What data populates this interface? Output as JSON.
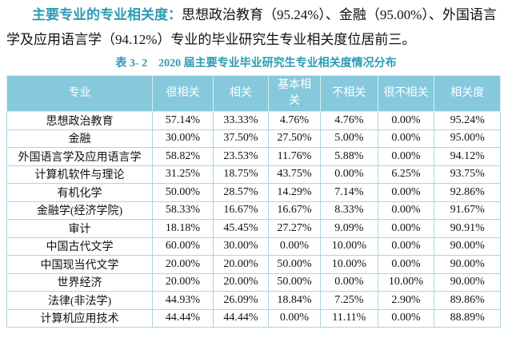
{
  "paragraph": {
    "highlight": "主要专业的专业相关度：",
    "lines": [
      "思想政治教育（95.24%）、金融（95.00%）、外国语言",
      "学及应用语言学（94.12%）专业的毕业研究生专业相关度位居前三。"
    ]
  },
  "table": {
    "caption": "表 3- 2　2020 届主要专业毕业研究生专业相关度情况分布",
    "header": [
      "专业",
      "很相关",
      "相关",
      "基本相关",
      "不相关",
      "很不相关",
      "相关度"
    ],
    "rows": [
      [
        "思想政治教育",
        "57.14%",
        "33.33%",
        "4.76%",
        "4.76%",
        "0.00%",
        "95.24%"
      ],
      [
        "金融",
        "30.00%",
        "37.50%",
        "27.50%",
        "5.00%",
        "0.00%",
        "95.00%"
      ],
      [
        "外国语言学及应用语言学",
        "58.82%",
        "23.53%",
        "11.76%",
        "5.88%",
        "0.00%",
        "94.12%"
      ],
      [
        "计算机软件与理论",
        "31.25%",
        "18.75%",
        "43.75%",
        "0.00%",
        "6.25%",
        "93.75%"
      ],
      [
        "有机化学",
        "50.00%",
        "28.57%",
        "14.29%",
        "7.14%",
        "0.00%",
        "92.86%"
      ],
      [
        "金融学(经济学院)",
        "58.33%",
        "16.67%",
        "16.67%",
        "8.33%",
        "0.00%",
        "91.67%"
      ],
      [
        "审计",
        "18.18%",
        "45.45%",
        "27.27%",
        "9.09%",
        "0.00%",
        "90.91%"
      ],
      [
        "中国古代文学",
        "60.00%",
        "30.00%",
        "0.00%",
        "10.00%",
        "0.00%",
        "90.00%"
      ],
      [
        "中国现当代文学",
        "20.00%",
        "20.00%",
        "50.00%",
        "10.00%",
        "0.00%",
        "90.00%"
      ],
      [
        "世界经济",
        "20.00%",
        "20.00%",
        "50.00%",
        "0.00%",
        "10.00%",
        "90.00%"
      ],
      [
        "法律(非法学)",
        "44.93%",
        "26.09%",
        "18.84%",
        "7.25%",
        "2.90%",
        "89.86%"
      ],
      [
        "计算机应用技术",
        "44.44%",
        "44.44%",
        "0.00%",
        "11.11%",
        "0.00%",
        "88.89%"
      ]
    ]
  }
}
